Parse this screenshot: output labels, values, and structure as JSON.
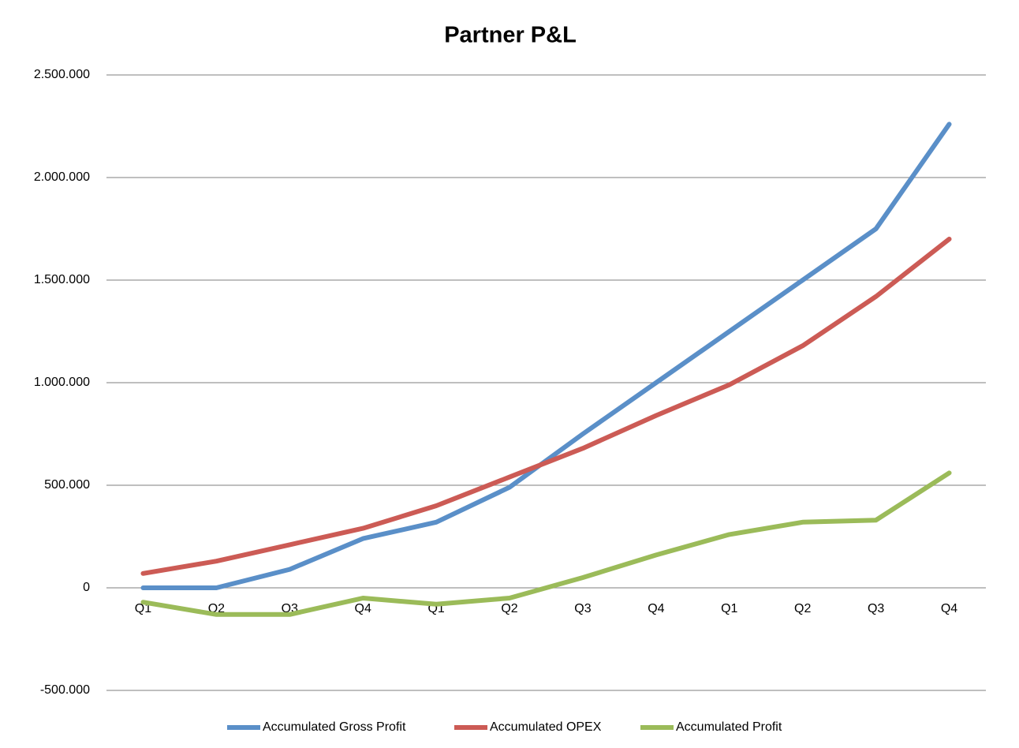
{
  "chart_data": {
    "type": "line",
    "title": "Partner P&L",
    "categories": [
      "Q1",
      "Q2",
      "Q3",
      "Q4",
      "Q1",
      "Q2",
      "Q3",
      "Q4",
      "Q1",
      "Q2",
      "Q3",
      "Q4"
    ],
    "series": [
      {
        "name": "Accumulated Gross Profit",
        "color": "#5a8fc8",
        "values": [
          0,
          0,
          90000,
          240000,
          320000,
          490000,
          750000,
          1000000,
          1250000,
          1500000,
          1750000,
          2260000
        ]
      },
      {
        "name": "Accumulated OPEX",
        "color": "#cc5b55",
        "values": [
          70000,
          130000,
          210000,
          290000,
          400000,
          540000,
          680000,
          840000,
          990000,
          1180000,
          1420000,
          1700000
        ]
      },
      {
        "name": "Accumulated Profit",
        "color": "#9bbb59",
        "values": [
          -70000,
          -130000,
          -130000,
          -50000,
          -80000,
          -50000,
          50000,
          160000,
          260000,
          320000,
          330000,
          560000
        ]
      }
    ],
    "ylim": [
      -500000,
      2500000
    ],
    "yticks": [
      {
        "value": -500000,
        "label": "-500.000"
      },
      0,
      {
        "value": 500000,
        "label": "500.000"
      },
      {
        "value": 1000000,
        "label": "1.000.000"
      },
      {
        "value": 1500000,
        "label": "1.500.000"
      },
      {
        "value": 2000000,
        "label": "2.000.000"
      },
      {
        "value": 2500000,
        "label": "2.500.000"
      }
    ],
    "grid": true,
    "legend": "bottom"
  }
}
